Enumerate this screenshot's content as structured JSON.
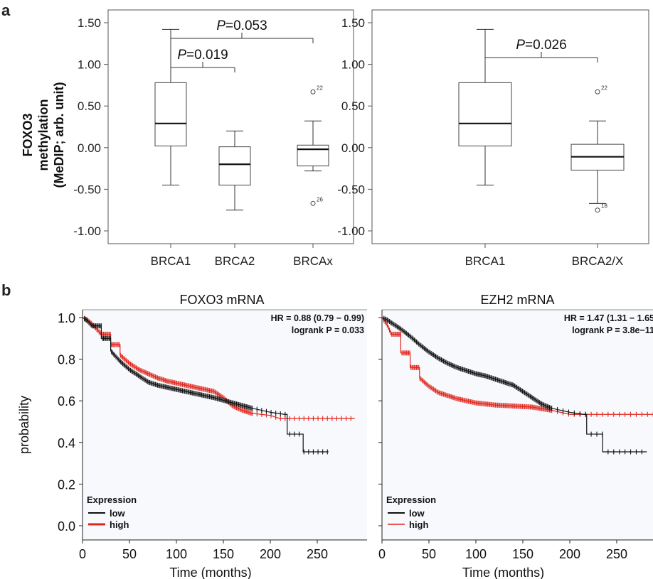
{
  "panel_labels": {
    "a": "a",
    "b": "b"
  },
  "shared": {
    "box_ylabel": [
      "FOXO3",
      "methylation",
      "(MeDIP; arb. unit)"
    ],
    "km_ylabel": "probability",
    "km_xlabel": "Time (months)",
    "km_legend_title": "Expression",
    "km_legend_low": "low",
    "km_legend_high": "high",
    "colors": {
      "low": "#111111",
      "high": "#e0261c",
      "plot_bg": "#f7f9fd"
    }
  },
  "chart_data": [
    {
      "type": "box",
      "categories": [
        "BRCA1",
        "BRCA2",
        "BRCAx"
      ],
      "ylim": [
        -1.0,
        1.5
      ],
      "yticks": [
        "1.50",
        "1.00",
        "0.50",
        "0.00",
        "-0.50",
        "-1.00"
      ],
      "boxes": [
        {
          "min": -0.45,
          "q1": 0.02,
          "median": 0.29,
          "q3": 0.78,
          "max": 1.42
        },
        {
          "min": -0.75,
          "q1": -0.45,
          "median": -0.2,
          "q3": 0.01,
          "max": 0.2
        },
        {
          "min": -0.28,
          "q1": -0.22,
          "median": -0.02,
          "q3": 0.03,
          "max": 0.32
        }
      ],
      "outliers": [
        {
          "box": 2,
          "y": 0.67,
          "label": "22"
        },
        {
          "box": 2,
          "y": -0.67,
          "label": "26"
        }
      ],
      "pvalues": [
        {
          "from": 0,
          "to": 1,
          "p_prefix": "P",
          "p_text": "=0.019"
        },
        {
          "from": 0,
          "to": 2,
          "p_prefix": "P",
          "p_text": "=0.053"
        }
      ]
    },
    {
      "type": "box",
      "categories": [
        "BRCA1",
        "BRCA2/X"
      ],
      "ylim": [
        -1.0,
        1.5
      ],
      "yticks": [
        "1.50",
        "1.00",
        "0.50",
        "0.00",
        "-0.50",
        "-1.00"
      ],
      "boxes": [
        {
          "min": -0.45,
          "q1": 0.02,
          "median": 0.29,
          "q3": 0.78,
          "max": 1.42
        },
        {
          "min": -0.67,
          "q1": -0.27,
          "median": -0.11,
          "q3": 0.04,
          "max": 0.32
        }
      ],
      "outliers": [
        {
          "box": 1,
          "y": 0.67,
          "label": "22"
        },
        {
          "box": 1,
          "y": -0.75,
          "label": "18"
        }
      ],
      "pvalues": [
        {
          "from": 0,
          "to": 1,
          "p_prefix": "P",
          "p_text": "=0.026"
        }
      ]
    },
    {
      "type": "line",
      "title": "FOXO3 mRNA",
      "annotation": [
        "HR = 0.88 (0.79 − 0.99)",
        "logrank P = 0.033"
      ],
      "xlim": [
        0,
        290
      ],
      "ylim": [
        -0.02,
        1.02
      ],
      "xticks": [
        0,
        50,
        100,
        150,
        200,
        250
      ],
      "yticks": [
        "0.0",
        "0.2",
        "0.4",
        "0.6",
        "0.8",
        "1.0"
      ],
      "series": [
        {
          "name": "low",
          "x": [
            0,
            5,
            10,
            20,
            30,
            40,
            50,
            60,
            70,
            80,
            90,
            100,
            120,
            140,
            160,
            180,
            200,
            215,
            218,
            230,
            235,
            262
          ],
          "y": [
            1.0,
            0.985,
            0.96,
            0.9,
            0.84,
            0.79,
            0.75,
            0.72,
            0.69,
            0.675,
            0.665,
            0.655,
            0.635,
            0.615,
            0.59,
            0.565,
            0.545,
            0.535,
            0.44,
            0.44,
            0.355,
            0.355
          ]
        },
        {
          "name": "high",
          "x": [
            0,
            5,
            10,
            20,
            30,
            40,
            50,
            60,
            70,
            80,
            90,
            100,
            110,
            120,
            130,
            140,
            150,
            160,
            170,
            180,
            200,
            210,
            290
          ],
          "y": [
            1.0,
            0.99,
            0.97,
            0.92,
            0.87,
            0.82,
            0.78,
            0.75,
            0.73,
            0.71,
            0.695,
            0.685,
            0.675,
            0.665,
            0.655,
            0.645,
            0.615,
            0.575,
            0.555,
            0.54,
            0.53,
            0.515,
            0.515
          ]
        }
      ]
    },
    {
      "type": "line",
      "title": "EZH2 mRNA",
      "annotation": [
        "HR = 1.47 (1.31 − 1.65",
        "logrank P = 3.8e−11"
      ],
      "xlim": [
        0,
        290
      ],
      "ylim": [
        -0.02,
        1.02
      ],
      "xticks": [
        0,
        50,
        100,
        150,
        200,
        250
      ],
      "yticks": [
        "0.0",
        "0.2",
        "0.4",
        "0.6",
        "0.8",
        "1.0"
      ],
      "series": [
        {
          "name": "low",
          "x": [
            0,
            5,
            10,
            20,
            30,
            40,
            50,
            60,
            70,
            80,
            90,
            100,
            110,
            120,
            130,
            140,
            150,
            160,
            170,
            180,
            200,
            215,
            218,
            230,
            235,
            282
          ],
          "y": [
            1.0,
            0.99,
            0.975,
            0.945,
            0.91,
            0.87,
            0.835,
            0.805,
            0.78,
            0.76,
            0.745,
            0.73,
            0.72,
            0.705,
            0.69,
            0.675,
            0.645,
            0.615,
            0.585,
            0.565,
            0.545,
            0.535,
            0.44,
            0.44,
            0.355,
            0.355
          ]
        },
        {
          "name": "high",
          "x": [
            0,
            5,
            10,
            20,
            30,
            40,
            50,
            60,
            70,
            80,
            90,
            100,
            120,
            140,
            160,
            180,
            200,
            290
          ],
          "y": [
            1.0,
            0.97,
            0.92,
            0.83,
            0.76,
            0.71,
            0.67,
            0.64,
            0.625,
            0.61,
            0.6,
            0.59,
            0.58,
            0.575,
            0.57,
            0.555,
            0.535,
            0.535
          ]
        }
      ]
    }
  ]
}
